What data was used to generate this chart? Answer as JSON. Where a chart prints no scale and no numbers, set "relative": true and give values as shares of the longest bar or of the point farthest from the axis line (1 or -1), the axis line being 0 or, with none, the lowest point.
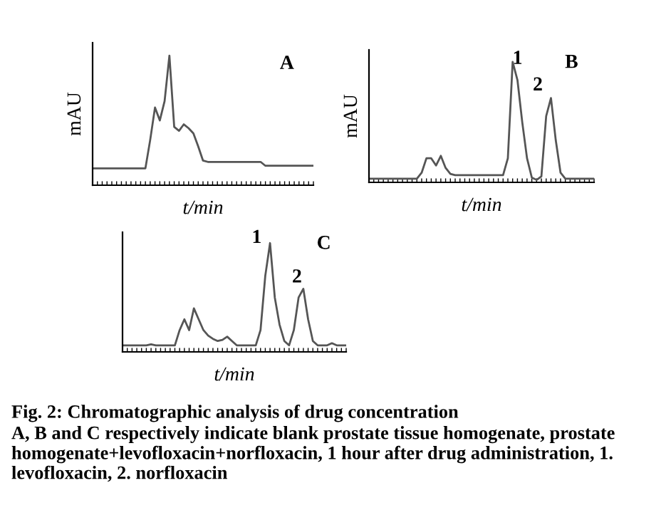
{
  "chart_data": [
    {
      "type": "line",
      "relative": true,
      "ylabel": "mAU",
      "xlabel": "t/min",
      "annotations": [
        "A"
      ],
      "categories": [
        null,
        null,
        null,
        null,
        null,
        null,
        null,
        null,
        null,
        null,
        null,
        null,
        null,
        null,
        null,
        null,
        null,
        null,
        null,
        null,
        null,
        null,
        null,
        null,
        null,
        null,
        null,
        null,
        null,
        null,
        null,
        null,
        null,
        null,
        null,
        null,
        null,
        null,
        null,
        null,
        null,
        null,
        null,
        null,
        null,
        null,
        null
      ],
      "series": [
        {
          "color": "#555555",
          "values": [
            0.13,
            0.13,
            0.13,
            0.13,
            0.13,
            0.13,
            0.13,
            0.13,
            0.13,
            0.13,
            0.13,
            0.13,
            0.35,
            0.6,
            0.5,
            0.65,
            1.0,
            0.45,
            0.42,
            0.47,
            0.44,
            0.4,
            0.3,
            0.19,
            0.18,
            0.18,
            0.18,
            0.18,
            0.18,
            0.18,
            0.18,
            0.18,
            0.18,
            0.18,
            0.18,
            0.18,
            0.15,
            0.15,
            0.15,
            0.15,
            0.15,
            0.15,
            0.15,
            0.15,
            0.15,
            0.15,
            0.15
          ]
        }
      ]
    },
    {
      "type": "line",
      "relative": true,
      "ylabel": "mAU",
      "xlabel": "t/min",
      "annotations": [
        "B",
        "1",
        "2"
      ],
      "categories": [
        null,
        null,
        null,
        null,
        null,
        null,
        null,
        null,
        null,
        null,
        null,
        null,
        null,
        null,
        null,
        null,
        null,
        null,
        null,
        null,
        null,
        null,
        null,
        null,
        null,
        null,
        null,
        null,
        null,
        null,
        null,
        null,
        null,
        null,
        null,
        null,
        null,
        null,
        null,
        null,
        null,
        null,
        null,
        null,
        null,
        null,
        null,
        null
      ],
      "series": [
        {
          "color": "#555555",
          "values": [
            0.03,
            0.03,
            0.03,
            0.03,
            0.03,
            0.03,
            0.03,
            0.03,
            0.03,
            0.03,
            0.03,
            0.08,
            0.2,
            0.2,
            0.14,
            0.22,
            0.12,
            0.07,
            0.06,
            0.06,
            0.06,
            0.06,
            0.06,
            0.06,
            0.06,
            0.06,
            0.06,
            0.06,
            0.06,
            0.2,
            1.0,
            0.85,
            0.5,
            0.2,
            0.04,
            0.02,
            0.05,
            0.55,
            0.7,
            0.35,
            0.08,
            0.03,
            0.03,
            0.03,
            0.03,
            0.03,
            0.03,
            0.03
          ]
        }
      ]
    },
    {
      "type": "line",
      "relative": true,
      "xlabel": "t/min",
      "annotations": [
        "C",
        "1",
        "2"
      ],
      "categories": [
        null,
        null,
        null,
        null,
        null,
        null,
        null,
        null,
        null,
        null,
        null,
        null,
        null,
        null,
        null,
        null,
        null,
        null,
        null,
        null,
        null,
        null,
        null,
        null,
        null,
        null,
        null,
        null,
        null,
        null,
        null,
        null,
        null,
        null,
        null,
        null,
        null,
        null,
        null,
        null,
        null,
        null,
        null,
        null,
        null,
        null,
        null,
        null
      ],
      "series": [
        {
          "color": "#555555",
          "values": [
            0.06,
            0.06,
            0.06,
            0.06,
            0.06,
            0.06,
            0.07,
            0.06,
            0.06,
            0.06,
            0.06,
            0.06,
            0.2,
            0.3,
            0.2,
            0.4,
            0.3,
            0.2,
            0.15,
            0.12,
            0.1,
            0.11,
            0.14,
            0.1,
            0.06,
            0.06,
            0.06,
            0.06,
            0.06,
            0.2,
            0.7,
            1.0,
            0.5,
            0.25,
            0.1,
            0.06,
            0.2,
            0.5,
            0.58,
            0.3,
            0.1,
            0.06,
            0.06,
            0.06,
            0.08,
            0.06,
            0.06,
            0.06
          ]
        }
      ]
    },
    {
      "type": "other",
      "title": "Fig. 2: Chromatographic analysis of drug concentration",
      "annotations": [
        "A, B and C respectively indicate blank prostate tissue homogenate, prostate homogenate+levofloxacin+norfloxacin, 1 hour after drug administration, 1. levofloxacin, 2. norfloxacin"
      ]
    }
  ]
}
